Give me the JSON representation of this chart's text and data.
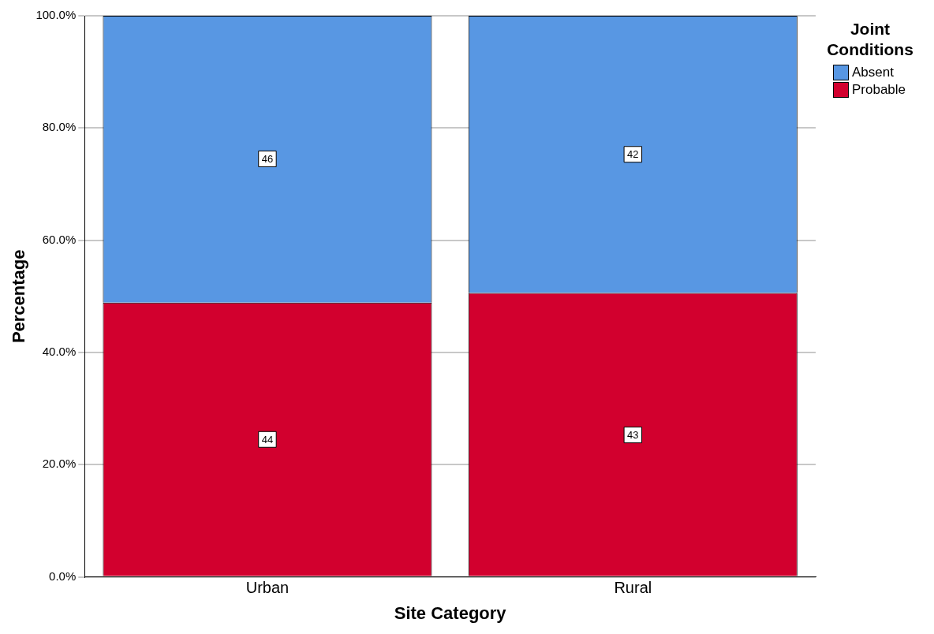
{
  "chart_data": {
    "type": "bar",
    "stacked": true,
    "xlabel": "Site Category",
    "ylabel": "Percentage",
    "legend_title": "Joint Conditions",
    "categories": [
      "Urban",
      "Rural"
    ],
    "series": [
      {
        "name": "Probable",
        "color": "#d2002e",
        "values": [
          48.9,
          50.6
        ]
      },
      {
        "name": "Absent",
        "color": "#5897e3",
        "values": [
          51.1,
          49.4
        ]
      }
    ],
    "annotations": [
      {
        "text": "44",
        "x": "Urban",
        "y": 24.5
      },
      {
        "text": "46",
        "x": "Urban",
        "y": 74.5
      },
      {
        "text": "43",
        "x": "Rural",
        "y": 25.3
      },
      {
        "text": "42",
        "x": "Rural",
        "y": 75.3
      }
    ],
    "ylim": [
      0,
      100
    ],
    "yticks": [
      {
        "value": 0,
        "label": "0.0%"
      },
      {
        "value": 20,
        "label": "20.0%"
      },
      {
        "value": 40,
        "label": "40.0%"
      },
      {
        "value": 60,
        "label": "60.0%"
      },
      {
        "value": 80,
        "label": "80.0%"
      },
      {
        "value": 100,
        "label": "100.0%"
      }
    ],
    "grid": "y",
    "legend": "top right"
  }
}
